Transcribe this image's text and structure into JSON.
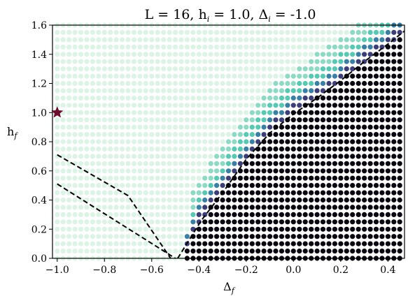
{
  "chart_data": {
    "type": "scatter",
    "title": {
      "prefix": "L = 16, h",
      "sub1": "i",
      "mid1": " = 1.0, Δ",
      "sub2": "i",
      "suffix": " = -1.0"
    },
    "xlabel": {
      "main": "Δ",
      "sub": "f"
    },
    "ylabel": {
      "main": "h",
      "sub": "f"
    },
    "xlim": [
      -1.02,
      0.47
    ],
    "ylim": [
      0.0,
      1.6
    ],
    "xticks": [
      "−1.0",
      "−0.8",
      "−0.6",
      "−0.4",
      "−0.2",
      "0.0",
      "0.2",
      "0.4"
    ],
    "xtick_values": [
      -1.0,
      -0.8,
      -0.6,
      -0.4,
      -0.2,
      0.0,
      0.2,
      0.4
    ],
    "yticks": [
      "0.0",
      "0.2",
      "0.4",
      "0.6",
      "0.8",
      "1.0",
      "1.2",
      "1.4",
      "1.6"
    ],
    "ytick_values": [
      0.0,
      0.2,
      0.4,
      0.6,
      0.8,
      1.0,
      1.2,
      1.4,
      1.6
    ],
    "grid": {
      "x_start": -1.0,
      "x_step": 0.025,
      "x_count": 59,
      "y_start": 0.0,
      "y_step": 0.05,
      "y_count": 33
    },
    "colors": {
      "background_dot": "#ddf3e6",
      "inner_dot": "#e7e7e7",
      "bright": "#5ac7b3",
      "mid": "#3b7fa3",
      "dark": "#3d3e75",
      "black": "#0b0710",
      "star": "#6a0f2e"
    },
    "region": {
      "left_boundary_x": -0.45,
      "dark_curve": [
        [
          -0.48,
          0.0
        ],
        [
          -0.4,
          0.24
        ],
        [
          -0.3,
          0.47
        ],
        [
          -0.2,
          0.68
        ],
        [
          -0.1,
          0.88
        ],
        [
          0.0,
          1.0
        ],
        [
          0.1,
          1.1
        ],
        [
          0.2,
          1.22
        ],
        [
          0.3,
          1.34
        ],
        [
          0.4,
          1.46
        ],
        [
          0.47,
          1.56
        ]
      ],
      "fringe_width": 0.18
    },
    "lines": [
      {
        "name": "dashed-boundary-main",
        "points": [
          [
            -0.49,
            0.0
          ],
          [
            -0.39,
            0.26
          ],
          [
            -0.3,
            0.45
          ],
          [
            -0.2,
            0.68
          ],
          [
            -0.1,
            0.86
          ],
          [
            0.0,
            0.99
          ],
          [
            0.1,
            1.1
          ],
          [
            0.2,
            1.22
          ],
          [
            0.3,
            1.35
          ],
          [
            0.4,
            1.47
          ],
          [
            0.47,
            1.56
          ]
        ]
      },
      {
        "name": "dashed-boundary-upper-left",
        "points": [
          [
            -1.0,
            0.71
          ],
          [
            -0.7,
            0.43
          ],
          [
            -0.52,
            0.0
          ]
        ]
      },
      {
        "name": "dashed-boundary-lower-left",
        "points": [
          [
            -1.0,
            0.51
          ],
          [
            -0.5,
            0.0
          ]
        ]
      }
    ],
    "marker": {
      "name": "initial-point-star",
      "x": -1.0,
      "y": 1.0
    }
  }
}
